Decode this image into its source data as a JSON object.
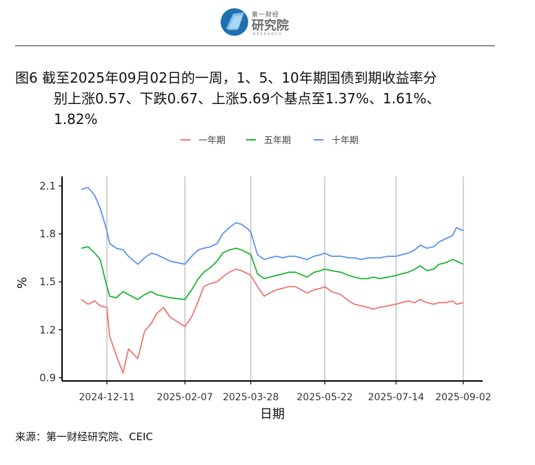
{
  "header": {
    "logo_small": "第一财经",
    "logo_main": "研究院",
    "logo_sub": "RESEARCH"
  },
  "title": {
    "line1": "图6  截至2025年09月02日的一周，1、5、10年期国债到期收益率分",
    "line2": "别上涨0.57、下跌0.67、上涨5.69个基点至1.37%、1.61%、",
    "line3": "1.82%"
  },
  "source": "来源：第一财经研究院、CEIC",
  "colors": {
    "series1": "#F0746E",
    "series5": "#1BB52E",
    "series10": "#5B90F5",
    "grid": "#A6A6A6",
    "axis": "#000000"
  },
  "chart_data": {
    "type": "line",
    "xlabel": "日期",
    "ylabel": "%",
    "ylim": [
      0.88,
      2.16
    ],
    "yticks": [
      0.9,
      1.2,
      1.5,
      1.8,
      2.1
    ],
    "xticks": [
      "2024-12-11",
      "2025-02-07",
      "2025-03-28",
      "2025-05-22",
      "2025-07-14",
      "2025-09-02"
    ],
    "grid": "vertical lines at x ticks",
    "legend_position": "top-center",
    "x": [
      "2024-11-22",
      "2024-11-27",
      "2024-12-02",
      "2024-12-06",
      "2024-12-11",
      "2024-12-13",
      "2024-12-18",
      "2024-12-23",
      "2024-12-27",
      "2025-01-03",
      "2025-01-08",
      "2025-01-13",
      "2025-01-17",
      "2025-01-22",
      "2025-01-27",
      "2025-02-07",
      "2025-02-12",
      "2025-02-17",
      "2025-02-21",
      "2025-02-26",
      "2025-03-03",
      "2025-03-07",
      "2025-03-12",
      "2025-03-17",
      "2025-03-21",
      "2025-03-26",
      "2025-03-28",
      "2025-04-02",
      "2025-04-07",
      "2025-04-11",
      "2025-04-16",
      "2025-04-21",
      "2025-04-25",
      "2025-04-30",
      "2025-05-09",
      "2025-05-14",
      "2025-05-19",
      "2025-05-22",
      "2025-05-27",
      "2025-06-03",
      "2025-06-09",
      "2025-06-13",
      "2025-06-18",
      "2025-06-23",
      "2025-06-27",
      "2025-07-02",
      "2025-07-08",
      "2025-07-14",
      "2025-07-18",
      "2025-07-23",
      "2025-07-28",
      "2025-08-01",
      "2025-08-06",
      "2025-08-11",
      "2025-08-15",
      "2025-08-20",
      "2025-08-25",
      "2025-08-28",
      "2025-09-02"
    ],
    "series": [
      {
        "name": "一年期",
        "values": [
          1.39,
          1.36,
          1.38,
          1.35,
          1.34,
          1.16,
          1.04,
          0.93,
          1.08,
          1.02,
          1.19,
          1.24,
          1.3,
          1.34,
          1.28,
          1.22,
          1.28,
          1.38,
          1.47,
          1.49,
          1.5,
          1.53,
          1.56,
          1.58,
          1.57,
          1.55,
          1.54,
          1.47,
          1.41,
          1.43,
          1.45,
          1.46,
          1.47,
          1.47,
          1.43,
          1.45,
          1.46,
          1.47,
          1.44,
          1.42,
          1.38,
          1.36,
          1.35,
          1.34,
          1.33,
          1.34,
          1.35,
          1.36,
          1.37,
          1.38,
          1.37,
          1.39,
          1.37,
          1.36,
          1.37,
          1.37,
          1.38,
          1.36,
          1.37
        ]
      },
      {
        "name": "五年期",
        "values": [
          1.71,
          1.72,
          1.68,
          1.64,
          1.47,
          1.41,
          1.4,
          1.44,
          1.42,
          1.39,
          1.42,
          1.44,
          1.42,
          1.41,
          1.4,
          1.39,
          1.45,
          1.52,
          1.56,
          1.59,
          1.63,
          1.68,
          1.7,
          1.71,
          1.7,
          1.68,
          1.67,
          1.55,
          1.52,
          1.53,
          1.54,
          1.55,
          1.56,
          1.56,
          1.53,
          1.56,
          1.57,
          1.58,
          1.57,
          1.56,
          1.54,
          1.53,
          1.52,
          1.52,
          1.53,
          1.52,
          1.53,
          1.54,
          1.55,
          1.56,
          1.58,
          1.6,
          1.57,
          1.58,
          1.61,
          1.62,
          1.64,
          1.63,
          1.61
        ]
      },
      {
        "name": "十年期",
        "values": [
          2.08,
          2.09,
          2.04,
          1.96,
          1.82,
          1.74,
          1.71,
          1.7,
          1.66,
          1.61,
          1.65,
          1.68,
          1.67,
          1.65,
          1.63,
          1.61,
          1.66,
          1.7,
          1.71,
          1.72,
          1.74,
          1.8,
          1.84,
          1.87,
          1.86,
          1.83,
          1.81,
          1.67,
          1.64,
          1.65,
          1.66,
          1.65,
          1.66,
          1.66,
          1.64,
          1.66,
          1.67,
          1.68,
          1.66,
          1.66,
          1.65,
          1.65,
          1.64,
          1.65,
          1.65,
          1.65,
          1.66,
          1.66,
          1.67,
          1.68,
          1.7,
          1.73,
          1.71,
          1.72,
          1.75,
          1.77,
          1.79,
          1.84,
          1.82
        ]
      }
    ]
  }
}
